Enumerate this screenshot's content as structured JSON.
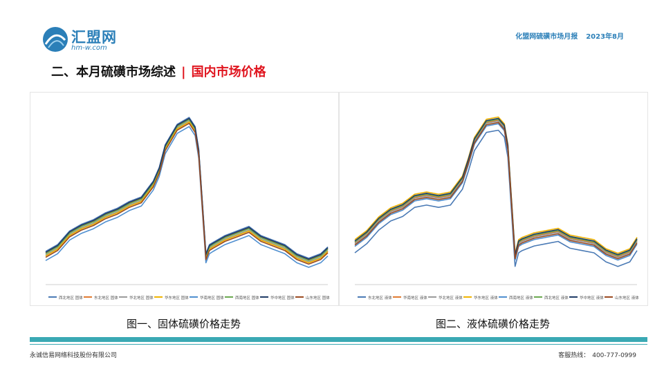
{
  "header": {
    "logo_text": "汇盟网",
    "logo_url": "hm-w.com",
    "report_title": "化盟网硫磺市场月报",
    "report_date": "2023年8月"
  },
  "section": {
    "title": "二、本月硫磺市场综述",
    "subtitle": "国内市场价格"
  },
  "colors": {
    "brand_blue": "#2b7fb8",
    "accent_red": "#e0141e",
    "teal_bar": "#3aa9b4"
  },
  "footer": {
    "company": "永诚信易网络科技股份有限公司",
    "hotline_label": "客服热线：",
    "hotline_number": "400-777-0999"
  },
  "chart_data": [
    {
      "type": "line",
      "caption": "图一、固体硫磺价格走势",
      "title": "",
      "xlabel": "",
      "ylabel": "",
      "ylim": [
        0,
        4000
      ],
      "grid": false,
      "legend_position": "bottom",
      "series_names": [
        "西北地区 固体",
        "东北地区 固体",
        "华北地区 固体",
        "华东地区 固体",
        "华南地区 固体",
        "西南地区 固体",
        "华中地区 固体",
        "山东地区 固体"
      ],
      "series_colors": [
        "#4a7ab5",
        "#e07a30",
        "#9a9a9a",
        "#f0b400",
        "#4f8fd0",
        "#6aa84f",
        "#1f3b66",
        "#9b4a20"
      ],
      "series_offsets": [
        80,
        40,
        0,
        -20,
        -120,
        30,
        60,
        -50
      ],
      "x_index": [
        0,
        10,
        20,
        30,
        40,
        50,
        60,
        70,
        80,
        90,
        95,
        100,
        110,
        120,
        125,
        128,
        131,
        134,
        137,
        140,
        150,
        160,
        170,
        180,
        190,
        200,
        210,
        220,
        230,
        236
      ],
      "base_values": [
        650,
        800,
        1100,
        1250,
        1350,
        1500,
        1600,
        1750,
        1850,
        2200,
        2500,
        3000,
        3450,
        3600,
        3400,
        2900,
        1750,
        600,
        800,
        850,
        1000,
        1100,
        1200,
        1000,
        900,
        800,
        600,
        500,
        600,
        750
      ]
    },
    {
      "type": "line",
      "caption": "图二、液体硫磺价格走势",
      "title": "",
      "xlabel": "",
      "ylabel": "",
      "ylim": [
        0,
        4000
      ],
      "grid": false,
      "legend_position": "bottom",
      "series_names": [
        "东北地区 液体",
        "华南地区 液体",
        "华北地区 液体",
        "华东地区 液体",
        "西南地区 液体",
        "西北地区 液体",
        "华中地区 液体",
        "山东地区 液体"
      ],
      "series_colors": [
        "#4a7ab5",
        "#e07a30",
        "#9a9a9a",
        "#f0b400",
        "#4f8fd0",
        "#6aa84f",
        "#1f3b66",
        "#9b4a20"
      ],
      "series_offsets": [
        -200,
        20,
        0,
        90,
        -60,
        40,
        60,
        -30
      ],
      "x_index": [
        0,
        10,
        20,
        30,
        40,
        50,
        60,
        70,
        80,
        90,
        95,
        100,
        110,
        120,
        125,
        128,
        131,
        134,
        137,
        140,
        150,
        160,
        170,
        180,
        190,
        200,
        210,
        220,
        230,
        236
      ],
      "base_values": [
        900,
        1100,
        1400,
        1600,
        1700,
        1900,
        1950,
        1900,
        1950,
        2300,
        2700,
        3150,
        3550,
        3600,
        3450,
        3000,
        1800,
        600,
        900,
        950,
        1050,
        1100,
        1150,
        1000,
        950,
        900,
        700,
        600,
        700,
        950
      ]
    }
  ]
}
